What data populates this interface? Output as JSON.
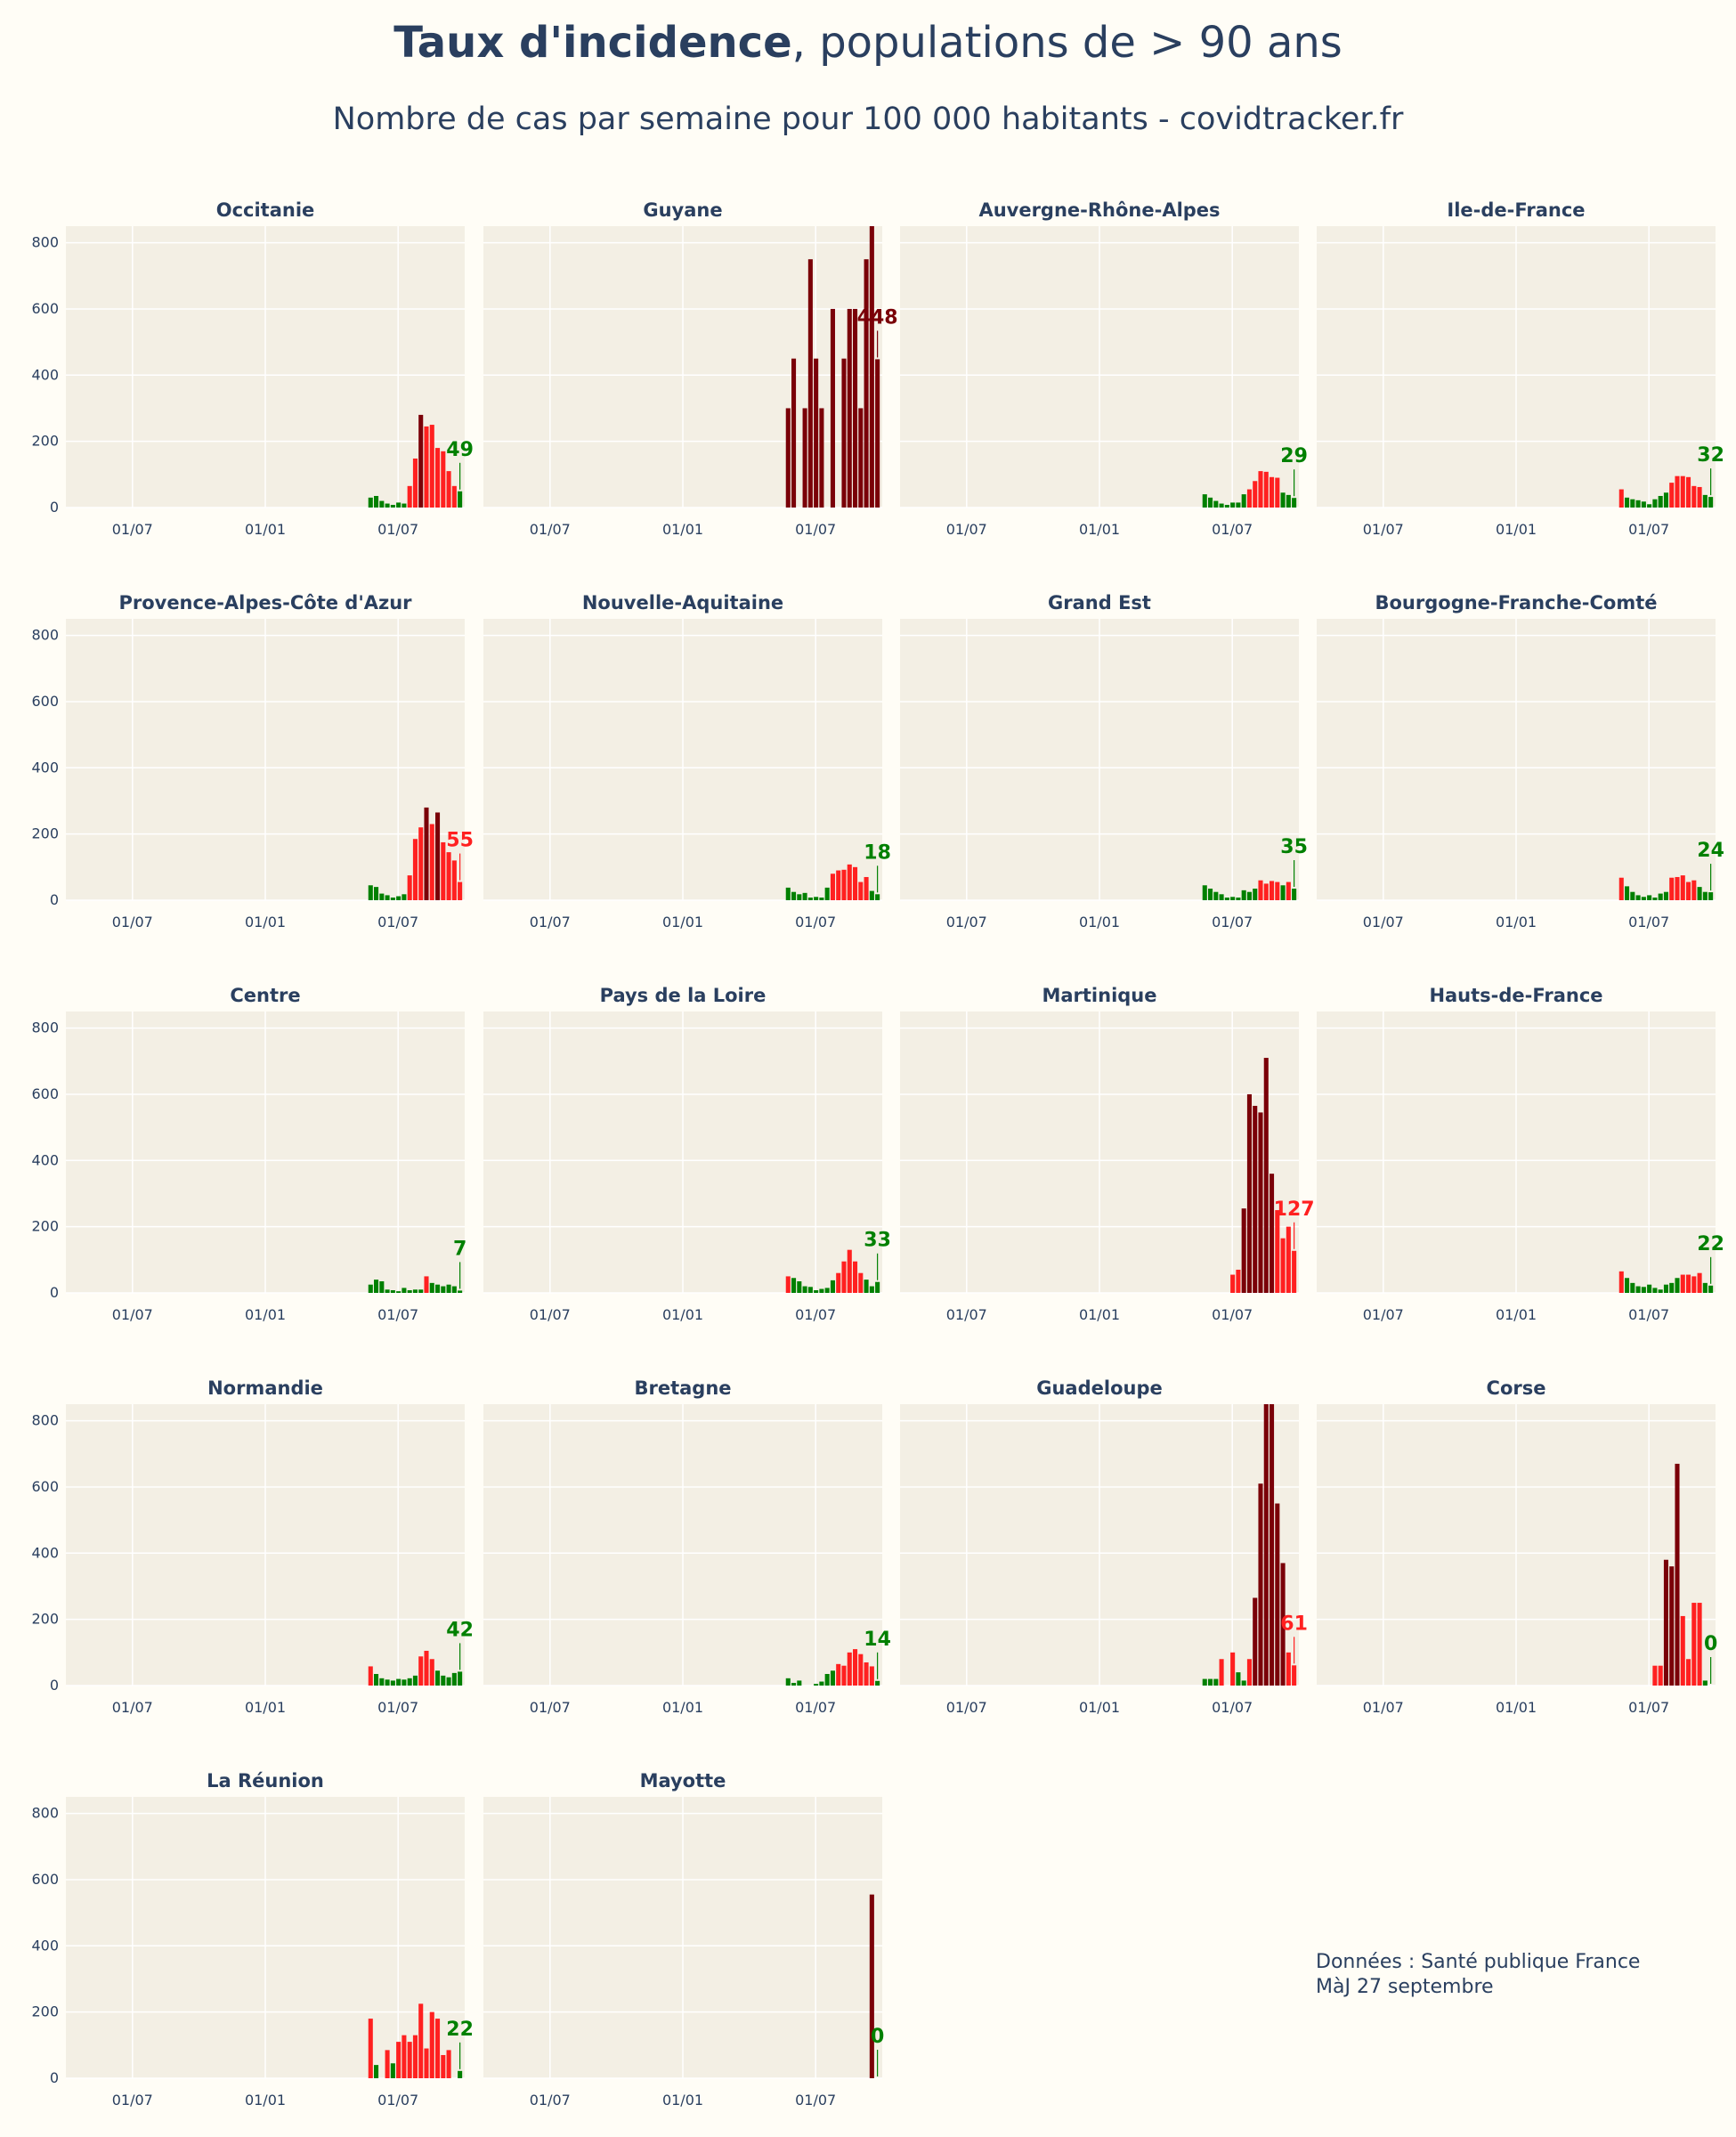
{
  "header": {
    "title_bold": "Taux d'incidence",
    "title_rest": ", populations de > 90 ans",
    "subtitle": "Nombre de cas par semaine pour 100 000 habitants - covidtracker.fr"
  },
  "footer": {
    "line1": "Données : Santé publique France",
    "line2": "MàJ 27 septembre"
  },
  "colors": {
    "background": "#fffdf6",
    "plot_bg": "#f3efe4",
    "grid": "#ffffff",
    "text": "#2a3f5f",
    "low": "#008000",
    "mid": "#ff2020",
    "high": "#7a0008"
  },
  "chart_data": {
    "type": "bar",
    "ylim": [
      0,
      850
    ],
    "yticks": [
      0,
      200,
      400,
      600,
      800
    ],
    "xtick_labels": [
      "01/07",
      "01/01",
      "01/07"
    ],
    "grid": true,
    "panels": [
      {
        "name": "Occitanie",
        "last_label": "49",
        "values": [
          30,
          35,
          20,
          12,
          8,
          15,
          12,
          65,
          148,
          280,
          245,
          250,
          180,
          170,
          110,
          65,
          49
        ]
      },
      {
        "name": "Guyane",
        "last_label": "448",
        "values": [
          300,
          450,
          0,
          300,
          750,
          450,
          300,
          0,
          600,
          0,
          450,
          600,
          600,
          300,
          750,
          850,
          448
        ]
      },
      {
        "name": "Auvergne-Rhône-Alpes",
        "last_label": "29",
        "values": [
          40,
          30,
          20,
          12,
          8,
          15,
          15,
          40,
          55,
          80,
          110,
          108,
          92,
          90,
          45,
          38,
          29
        ]
      },
      {
        "name": "Ile-de-France",
        "last_label": "32",
        "values": [
          55,
          30,
          25,
          22,
          18,
          10,
          25,
          35,
          45,
          75,
          95,
          95,
          92,
          65,
          62,
          38,
          32
        ]
      },
      {
        "name": "Provence-Alpes-Côte d'Azur",
        "last_label": "55",
        "values": [
          45,
          40,
          20,
          15,
          8,
          12,
          18,
          75,
          185,
          220,
          280,
          230,
          265,
          175,
          145,
          120,
          55
        ]
      },
      {
        "name": "Nouvelle-Aquitaine",
        "last_label": "18",
        "values": [
          38,
          25,
          18,
          22,
          8,
          10,
          8,
          38,
          80,
          90,
          92,
          108,
          100,
          55,
          70,
          28,
          18
        ]
      },
      {
        "name": "Grand Est",
        "last_label": "35",
        "values": [
          45,
          35,
          25,
          18,
          8,
          10,
          8,
          30,
          25,
          35,
          60,
          50,
          58,
          55,
          45,
          55,
          35
        ]
      },
      {
        "name": "Bourgogne-Franche-Comté",
        "last_label": "24",
        "values": [
          68,
          42,
          25,
          15,
          10,
          15,
          8,
          20,
          25,
          68,
          70,
          75,
          55,
          60,
          40,
          25,
          24
        ]
      },
      {
        "name": "Centre",
        "last_label": "7",
        "values": [
          25,
          40,
          35,
          10,
          8,
          5,
          15,
          8,
          10,
          10,
          50,
          30,
          25,
          20,
          25,
          20,
          7
        ]
      },
      {
        "name": "Pays de la Loire",
        "last_label": "33",
        "values": [
          50,
          45,
          35,
          20,
          18,
          8,
          12,
          15,
          38,
          60,
          95,
          130,
          95,
          60,
          40,
          20,
          33
        ]
      },
      {
        "name": "Martinique",
        "last_label": "127",
        "values": [
          55,
          70,
          255,
          600,
          565,
          545,
          710,
          360,
          250,
          165,
          200,
          127
        ]
      },
      {
        "name": "Hauts-de-France",
        "last_label": "22",
        "values": [
          65,
          45,
          30,
          20,
          18,
          25,
          15,
          10,
          25,
          30,
          45,
          55,
          55,
          50,
          60,
          30,
          22
        ]
      },
      {
        "name": "Normandie",
        "last_label": "42",
        "values": [
          58,
          35,
          22,
          18,
          15,
          20,
          18,
          22,
          30,
          88,
          105,
          80,
          45,
          30,
          25,
          38,
          42
        ]
      },
      {
        "name": "Bretagne",
        "last_label": "14",
        "values": [
          22,
          8,
          15,
          0,
          0,
          5,
          12,
          35,
          45,
          65,
          60,
          100,
          110,
          95,
          70,
          58,
          14
        ]
      },
      {
        "name": "Guadeloupe",
        "last_label": "61",
        "values": [
          20,
          20,
          20,
          80,
          0,
          100,
          40,
          15,
          80,
          265,
          610,
          850,
          850,
          550,
          370,
          100,
          61
        ]
      },
      {
        "name": "Corse",
        "last_label": "0",
        "values": [
          60,
          60,
          380,
          360,
          670,
          210,
          80,
          250,
          250,
          15,
          0
        ]
      },
      {
        "name": "La Réunion",
        "last_label": "22",
        "values": [
          180,
          40,
          0,
          85,
          45,
          110,
          130,
          110,
          130,
          225,
          90,
          200,
          180,
          70,
          85,
          0,
          22
        ]
      },
      {
        "name": "Mayotte",
        "last_label": "0",
        "values": [
          555,
          0
        ]
      }
    ]
  }
}
